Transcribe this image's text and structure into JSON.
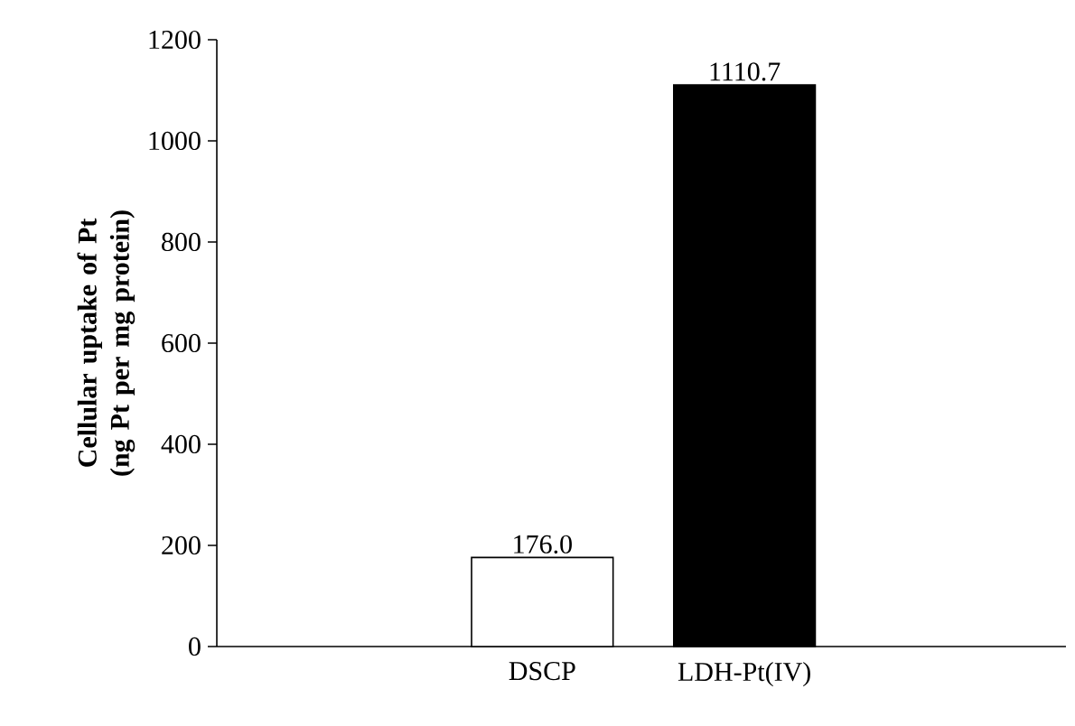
{
  "chart_data": {
    "type": "bar",
    "ylabel": "Cellular uptake of Pt (ng Pt per mg protein)",
    "categories": [
      "DSCP",
      "LDH-Pt(IV)"
    ],
    "values": [
      176.0,
      1110.7
    ],
    "colors": [
      "#ffffff",
      "#000000"
    ],
    "ylim": [
      0,
      1200
    ],
    "yticks": [
      0,
      200,
      400,
      600,
      800,
      1000,
      1200
    ],
    "value_labels": [
      "176.0",
      "1110.7"
    ]
  }
}
